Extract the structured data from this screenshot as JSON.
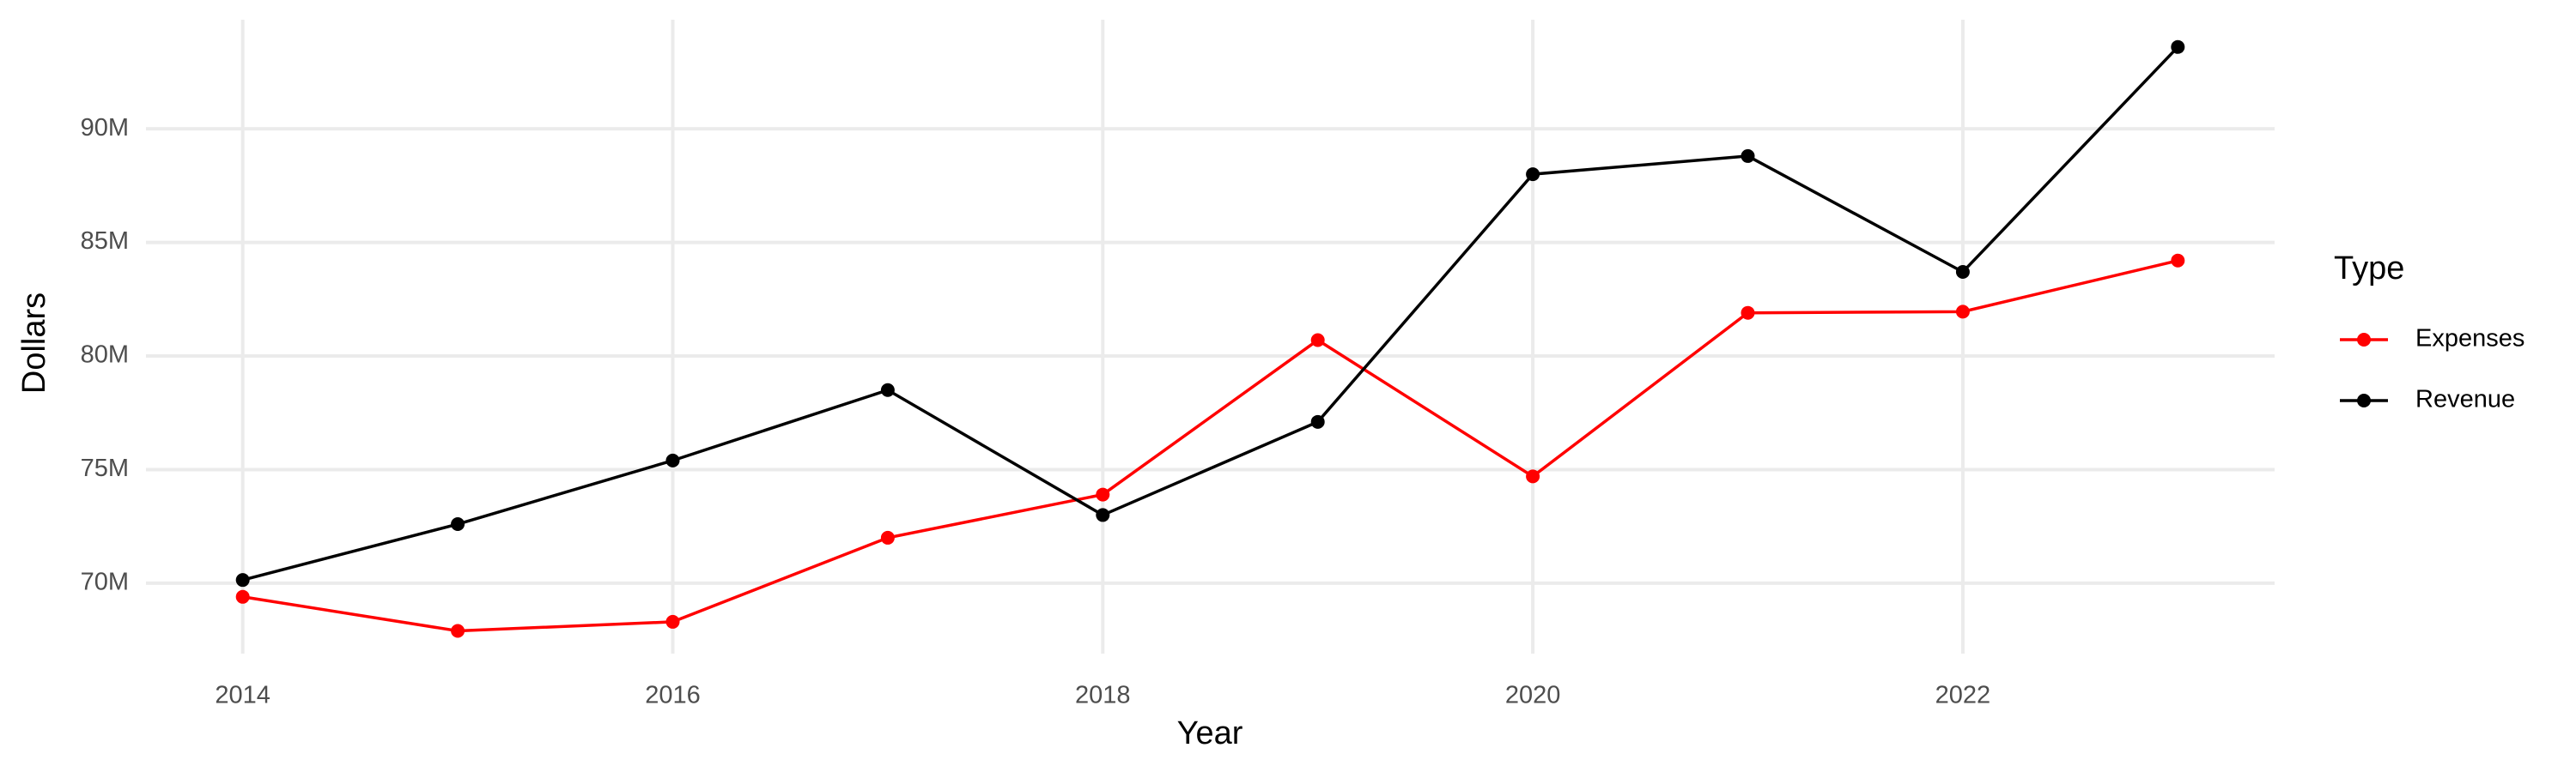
{
  "chart_data": {
    "type": "line",
    "x_label": "Year",
    "y_label": "Dollars",
    "x": [
      2014,
      2015,
      2016,
      2017,
      2018,
      2019,
      2020,
      2021,
      2022,
      2023
    ],
    "series": [
      {
        "name": "Expenses",
        "color": "#ff0000",
        "values": [
          69400000,
          67900000,
          68300000,
          72000000,
          73900000,
          80700000,
          74700000,
          81900000,
          81950000,
          84200000
        ]
      },
      {
        "name": "Revenue",
        "color": "#000000",
        "values": [
          70140000,
          72600000,
          75400000,
          78500000,
          73000000,
          77100000,
          88000000,
          88800000,
          83700000,
          93600000
        ]
      }
    ],
    "xlim": [
      2013.55,
      2023.45
    ],
    "xticks": [
      2014,
      2016,
      2018,
      2020,
      2022
    ],
    "ylim": [
      66900000,
      94800000
    ],
    "yticks": [
      {
        "value": 70000000,
        "label": "70M"
      },
      {
        "value": 75000000,
        "label": "75M"
      },
      {
        "value": 80000000,
        "label": "80M"
      },
      {
        "value": 85000000,
        "label": "85M"
      },
      {
        "value": 90000000,
        "label": "90M"
      }
    ],
    "grid": true,
    "legend_title": "Type",
    "legend_position": "right"
  }
}
